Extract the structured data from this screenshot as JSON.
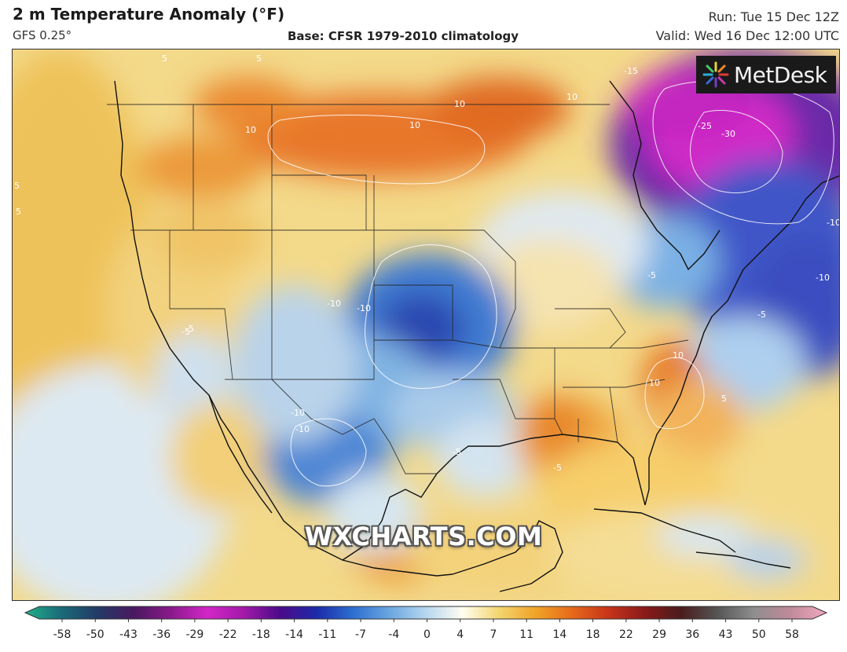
{
  "header": {
    "title": "2 m Temperature Anomaly (°F)",
    "model": "GFS 0.25°",
    "base": "Base: CFSR 1979-2010 climatology",
    "run": "Run: Tue 15 Dec 12Z",
    "valid": "Valid: Wed 16 Dec 12:00 UTC"
  },
  "logo": {
    "text": "MetDesk",
    "icon": "sunburst-logo-icon"
  },
  "watermark": "WXCHARTS.COM",
  "map": {
    "contour_labels": [
      "5",
      "5",
      "5",
      "5",
      "10",
      "10",
      "10",
      "10",
      "-15",
      "-25",
      "-30",
      "-10",
      "-10",
      "-10",
      "-10",
      "-5",
      "-5",
      "-5",
      "10",
      "10",
      "5",
      "-5",
      "-5",
      "-10",
      "-10",
      "-5"
    ]
  },
  "colorbar": {
    "ticks": [
      "-58",
      "-50",
      "-43",
      "-36",
      "-29",
      "-22",
      "-18",
      "-14",
      "-11",
      "-7",
      "-4",
      "0",
      "4",
      "7",
      "11",
      "14",
      "18",
      "22",
      "29",
      "36",
      "43",
      "50",
      "58"
    ],
    "colors": [
      "#20b08a",
      "#1a6a78",
      "#233a66",
      "#4a1860",
      "#8a1a8a",
      "#d226c8",
      "#a21aa8",
      "#4b0a8a",
      "#1c2aa8",
      "#2d6fd0",
      "#6aa6e0",
      "#b6d6ef",
      "#fffdf0",
      "#f3d670",
      "#f0a428",
      "#e66a1a",
      "#c8341a",
      "#8a1a1a",
      "#4a1c1c",
      "#555555",
      "#8e8e8e",
      "#c08a9a",
      "#f0a8c0"
    ]
  }
}
